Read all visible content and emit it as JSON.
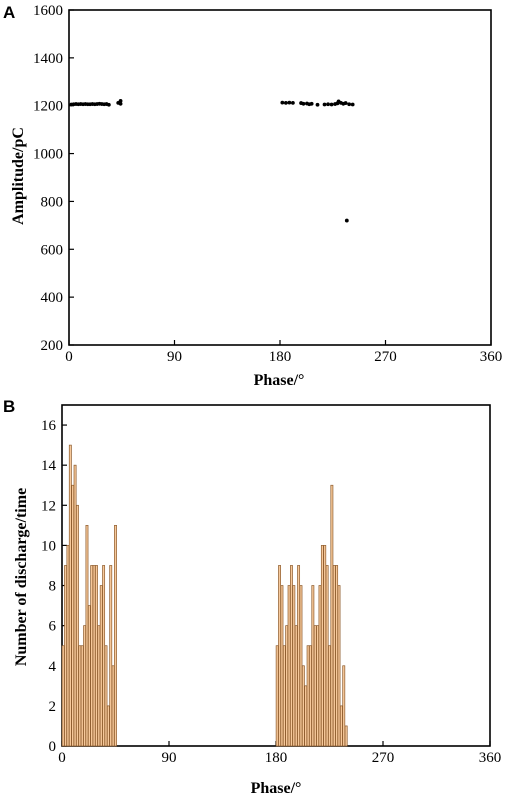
{
  "chart_data": [
    {
      "panel": "A",
      "type": "scatter",
      "xlabel": "Phase/°",
      "ylabel": "Amplitude/pC",
      "xlim": [
        0,
        360
      ],
      "ylim": [
        200,
        1600
      ],
      "xticks": [
        0,
        90,
        180,
        270,
        360
      ],
      "yticks": [
        200,
        400,
        600,
        800,
        1000,
        1200,
        1400,
        1600
      ],
      "marker_color": "#000000",
      "points": [
        [
          2,
          1205
        ],
        [
          4,
          1206
        ],
        [
          6,
          1207
        ],
        [
          8,
          1206
        ],
        [
          10,
          1207
        ],
        [
          12,
          1206
        ],
        [
          14,
          1207
        ],
        [
          16,
          1206
        ],
        [
          18,
          1206
        ],
        [
          20,
          1207
        ],
        [
          22,
          1206
        ],
        [
          24,
          1207
        ],
        [
          26,
          1208
        ],
        [
          28,
          1207
        ],
        [
          30,
          1206
        ],
        [
          32,
          1207
        ],
        [
          34,
          1204
        ],
        [
          42,
          1212
        ],
        [
          44,
          1208
        ],
        [
          44,
          1220
        ],
        [
          182,
          1213
        ],
        [
          185,
          1212
        ],
        [
          188,
          1213
        ],
        [
          191,
          1212
        ],
        [
          198,
          1211
        ],
        [
          200,
          1208
        ],
        [
          203,
          1209
        ],
        [
          205,
          1206
        ],
        [
          207,
          1208
        ],
        [
          212,
          1204
        ],
        [
          218,
          1205
        ],
        [
          221,
          1206
        ],
        [
          224,
          1205
        ],
        [
          227,
          1207
        ],
        [
          229,
          1210
        ],
        [
          230,
          1218
        ],
        [
          232,
          1212
        ],
        [
          234,
          1208
        ],
        [
          236,
          1211
        ],
        [
          239,
          1206
        ],
        [
          242,
          1205
        ],
        [
          237,
          720
        ]
      ]
    },
    {
      "panel": "B",
      "type": "bar",
      "xlabel": "Phase/°",
      "ylabel": "Number of discharge/time",
      "xlim": [
        0,
        360
      ],
      "ylim": [
        0,
        17
      ],
      "xticks": [
        0,
        90,
        180,
        270,
        360
      ],
      "yticks": [
        0,
        2,
        4,
        6,
        8,
        10,
        12,
        14,
        16
      ],
      "bar_width": 1.8,
      "bar_fill": "#f7c99b",
      "bar_edge": "#8c5a2b",
      "bars": [
        [
          1,
          5
        ],
        [
          3,
          9
        ],
        [
          5,
          10
        ],
        [
          7,
          15
        ],
        [
          9,
          13
        ],
        [
          11,
          14
        ],
        [
          13,
          12
        ],
        [
          15,
          5
        ],
        [
          17,
          5
        ],
        [
          19,
          6
        ],
        [
          21,
          11
        ],
        [
          23,
          7
        ],
        [
          25,
          9
        ],
        [
          27,
          9
        ],
        [
          29,
          9
        ],
        [
          31,
          6
        ],
        [
          33,
          8
        ],
        [
          35,
          9
        ],
        [
          37,
          5
        ],
        [
          39,
          2
        ],
        [
          41,
          9
        ],
        [
          43,
          4
        ],
        [
          45,
          11
        ],
        [
          181,
          5
        ],
        [
          183,
          9
        ],
        [
          185,
          8
        ],
        [
          187,
          5
        ],
        [
          189,
          6
        ],
        [
          191,
          8
        ],
        [
          193,
          9
        ],
        [
          195,
          8
        ],
        [
          197,
          6
        ],
        [
          199,
          9
        ],
        [
          201,
          8
        ],
        [
          203,
          4
        ],
        [
          205,
          3
        ],
        [
          207,
          5
        ],
        [
          209,
          5
        ],
        [
          211,
          8
        ],
        [
          213,
          6
        ],
        [
          215,
          6
        ],
        [
          217,
          8
        ],
        [
          219,
          10
        ],
        [
          221,
          10
        ],
        [
          223,
          9
        ],
        [
          225,
          5
        ],
        [
          227,
          13
        ],
        [
          229,
          9
        ],
        [
          231,
          9
        ],
        [
          233,
          8
        ],
        [
          235,
          2
        ],
        [
          237,
          4
        ],
        [
          239,
          1
        ]
      ]
    }
  ]
}
